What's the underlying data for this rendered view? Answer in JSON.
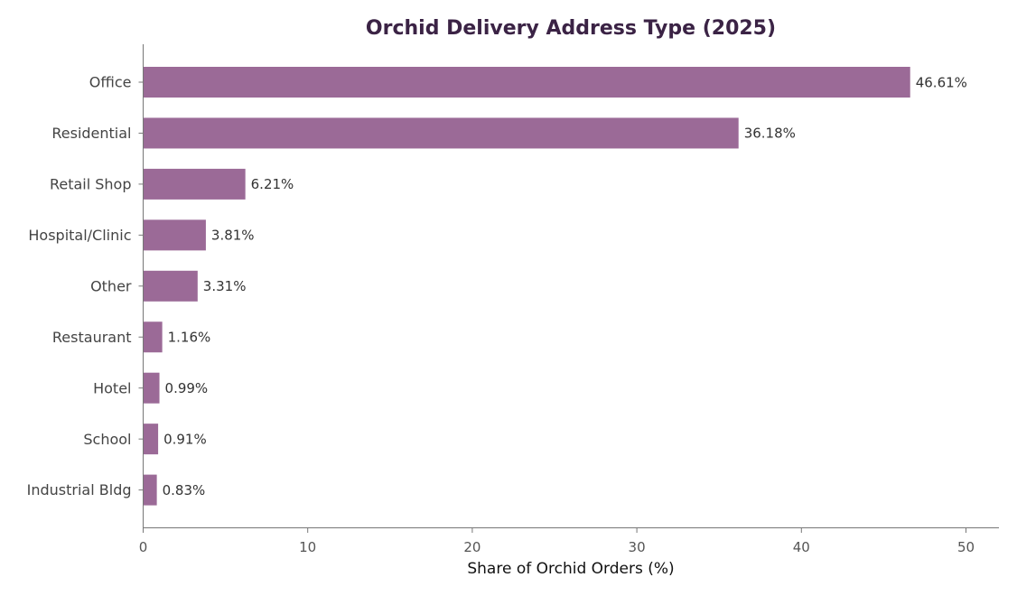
{
  "chart_data": {
    "type": "bar",
    "orientation": "horizontal",
    "title": "Orchid Delivery Address Type (2025)",
    "xlabel": "Share of Orchid Orders (%)",
    "ylabel": "",
    "xlim": [
      0,
      52
    ],
    "xticks": [
      0,
      10,
      20,
      30,
      40,
      50
    ],
    "grid": false,
    "bar_color": "#9b6a97",
    "categories": [
      "Office",
      "Residential",
      "Retail Shop",
      "Hospital/Clinic",
      "Other",
      "Restaurant",
      "Hotel",
      "School",
      "Industrial Bldg"
    ],
    "values": [
      46.61,
      36.18,
      6.21,
      3.81,
      3.31,
      1.16,
      0.99,
      0.91,
      0.83
    ],
    "value_labels": [
      "46.61%",
      "36.18%",
      "6.21%",
      "3.81%",
      "3.31%",
      "1.16%",
      "0.99%",
      "0.91%",
      "0.83%"
    ]
  }
}
